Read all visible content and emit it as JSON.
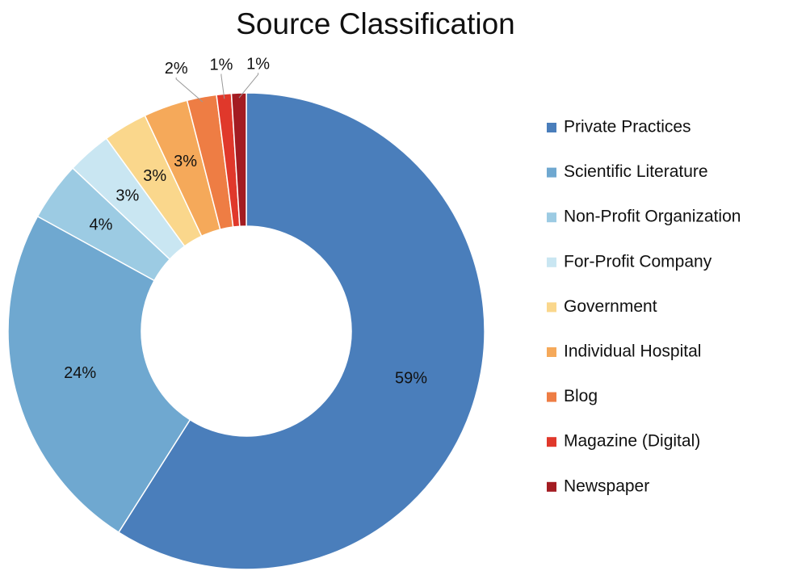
{
  "chart_data": {
    "type": "donut",
    "title": "Source Classification",
    "categories": [
      "Private Practices",
      "Scientific Literature",
      "Non-Profit Organization",
      "For-Profit Company",
      "Government",
      "Individual Hospital",
      "Blog",
      "Magazine (Digital)",
      "Newspaper"
    ],
    "values": [
      59,
      24,
      4,
      3,
      3,
      3,
      2,
      1,
      1
    ],
    "value_labels": [
      "59%",
      "24%",
      "4%",
      "3%",
      "3%",
      "3%",
      "2%",
      "1%",
      "1%"
    ],
    "colors": [
      "#4a7ebb",
      "#6fa8d0",
      "#9ccbe3",
      "#c9e6f2",
      "#fad78c",
      "#f5a95a",
      "#ee7d44",
      "#e0382b",
      "#a31c22"
    ],
    "legend": "right"
  }
}
